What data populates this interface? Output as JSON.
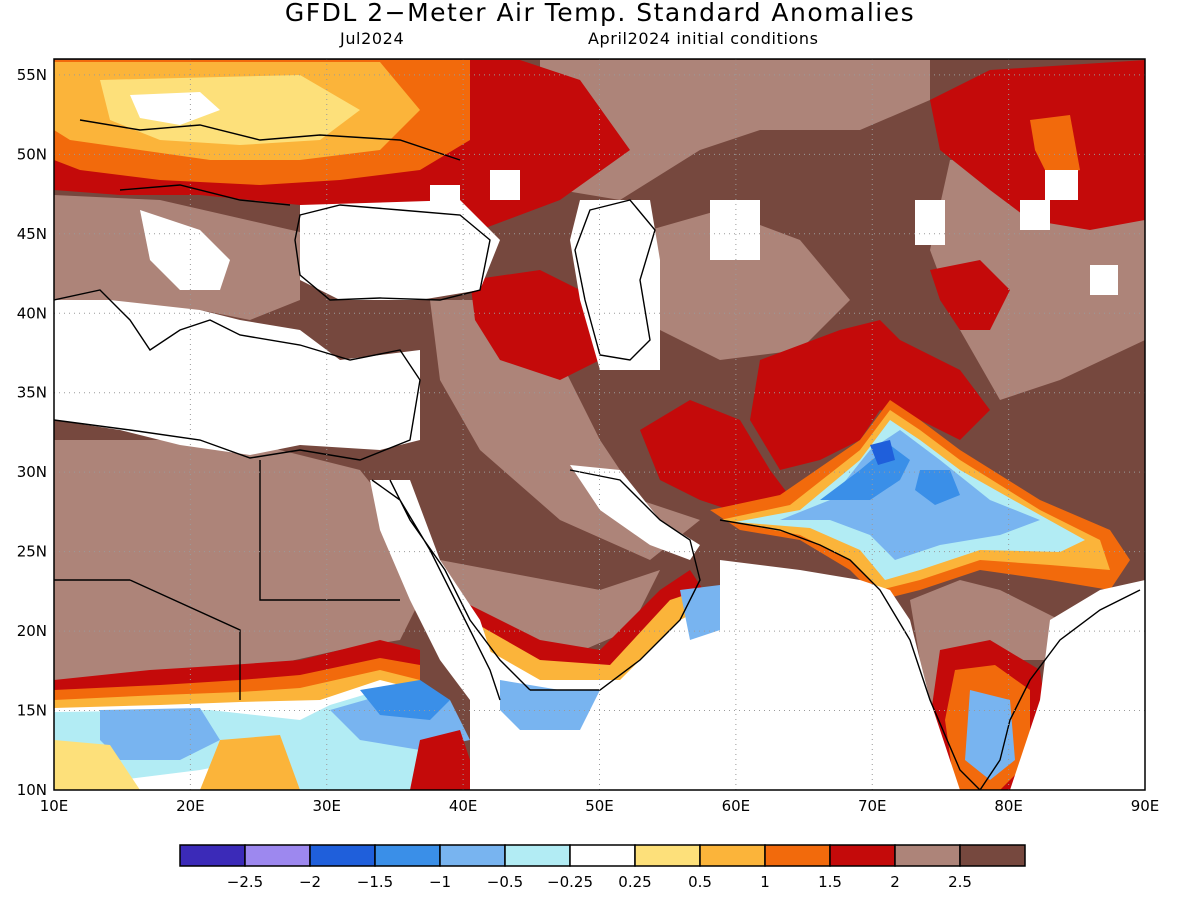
{
  "title": "GFDL 2−Meter Air Temp. Standard Anomalies",
  "subtitle_left": "Jul2024",
  "subtitle_right": "April2024 initial conditions",
  "map": {
    "lon_range": [
      10,
      90
    ],
    "lat_range": [
      10,
      56
    ],
    "lon_labels": [
      {
        "v": 10,
        "t": "10E"
      },
      {
        "v": 20,
        "t": "20E"
      },
      {
        "v": 30,
        "t": "30E"
      },
      {
        "v": 40,
        "t": "40E"
      },
      {
        "v": 50,
        "t": "50E"
      },
      {
        "v": 60,
        "t": "60E"
      },
      {
        "v": 70,
        "t": "70E"
      },
      {
        "v": 80,
        "t": "80E"
      },
      {
        "v": 90,
        "t": "90E"
      }
    ],
    "lat_labels": [
      {
        "v": 10,
        "t": "10N"
      },
      {
        "v": 15,
        "t": "15N"
      },
      {
        "v": 20,
        "t": "20N"
      },
      {
        "v": 25,
        "t": "25N"
      },
      {
        "v": 30,
        "t": "30N"
      },
      {
        "v": 35,
        "t": "35N"
      },
      {
        "v": 40,
        "t": "40N"
      },
      {
        "v": 45,
        "t": "45N"
      },
      {
        "v": 50,
        "t": "50N"
      },
      {
        "v": 55,
        "t": "55N"
      }
    ],
    "gridlines": "dotted"
  },
  "legend": {
    "labels": [
      "−2.5",
      "−2",
      "−1.5",
      "−1",
      "−0.5",
      "−0.25",
      "0.25",
      "0.5",
      "1",
      "1.5",
      "2",
      "2.5"
    ],
    "colors": [
      "#3b2ab8",
      "#9d88ef",
      "#1f5fdb",
      "#3a8fe8",
      "#78b4f0",
      "#b2ecf4",
      "#ffffff",
      "#fde07a",
      "#fbb43a",
      "#f26a0c",
      "#c40a0a",
      "#ad8479",
      "#76483e"
    ]
  },
  "colors": {
    "very_warm": "#76483e",
    "warm_brown": "#ad8479",
    "red": "#c40a0a",
    "orange": "#f26a0c",
    "light_orange": "#fbb43a",
    "yellow": "#fde07a",
    "neutral": "#ffffff",
    "cyan": "#b2ecf4",
    "light_blue": "#78b4f0",
    "blue": "#3a8fe8",
    "mid_blue": "#1f5fdb"
  }
}
